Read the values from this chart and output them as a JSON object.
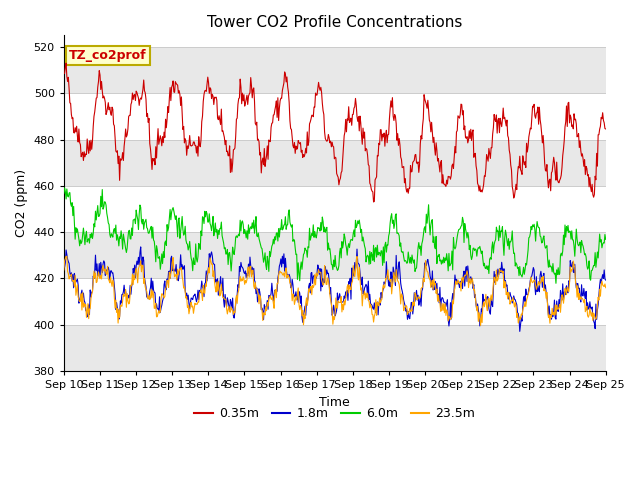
{
  "title": "Tower CO2 Profile Concentrations",
  "xlabel": "Time",
  "ylabel": "CO2 (ppm)",
  "ylim": [
    380,
    525
  ],
  "yticks": [
    380,
    400,
    420,
    440,
    460,
    480,
    500,
    520
  ],
  "x_labels": [
    "Sep 10",
    "Sep 11",
    "Sep 12",
    "Sep 13",
    "Sep 14",
    "Sep 15",
    "Sep 16",
    "Sep 17",
    "Sep 18",
    "Sep 19",
    "Sep 20",
    "Sep 21",
    "Sep 22",
    "Sep 23",
    "Sep 24",
    "Sep 25"
  ],
  "colors": {
    "0.35m": "#cc0000",
    "1.8m": "#0000cc",
    "6.0m": "#00cc00",
    "23.5m": "#ffa500"
  },
  "legend_labels": [
    "0.35m",
    "1.8m",
    "6.0m",
    "23.5m"
  ],
  "annotation_text": "TZ_co2prof",
  "annotation_bg": "#ffffcc",
  "annotation_border": "#bbaa00",
  "background_color": "#ffffff",
  "plot_bg": "#ffffff",
  "band_color": "#e8e8e8",
  "grid_color": "#cccccc",
  "title_fontsize": 11,
  "label_fontsize": 9,
  "tick_fontsize": 8,
  "legend_fontsize": 9
}
